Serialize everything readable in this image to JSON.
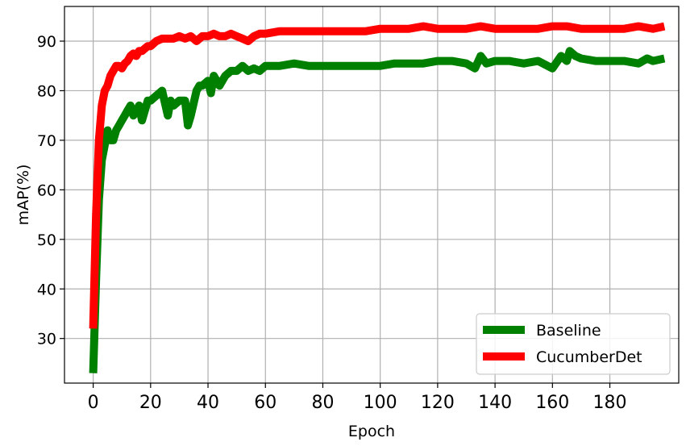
{
  "chart_data": {
    "type": "line",
    "xlabel": "Epoch",
    "ylabel": "mAP(%)",
    "xlim": [
      -10,
      204
    ],
    "ylim": [
      21,
      97
    ],
    "xticks": [
      0,
      20,
      40,
      60,
      80,
      100,
      120,
      140,
      160,
      180
    ],
    "yticks": [
      30,
      40,
      50,
      60,
      70,
      80,
      90
    ],
    "grid": true,
    "legend": "bottom-right",
    "series": [
      {
        "name": "Baseline",
        "color": "#008000",
        "x": [
          0,
          1,
          2,
          3,
          4,
          5,
          6,
          7,
          8,
          9,
          10,
          11,
          12,
          13,
          14,
          15,
          16,
          17,
          18,
          19,
          20,
          22,
          24,
          26,
          27,
          28,
          30,
          32,
          33,
          34,
          36,
          37,
          38,
          40,
          41,
          42,
          44,
          46,
          48,
          50,
          52,
          54,
          56,
          58,
          60,
          65,
          70,
          75,
          80,
          85,
          90,
          95,
          100,
          105,
          110,
          115,
          120,
          125,
          130,
          133,
          135,
          137,
          140,
          145,
          150,
          155,
          160,
          163,
          165,
          166,
          168,
          170,
          175,
          180,
          185,
          190,
          193,
          195,
          199
        ],
        "y": [
          23,
          42,
          58,
          66,
          69,
          72,
          70,
          70,
          72,
          73,
          74,
          75,
          76,
          77,
          75,
          76,
          77,
          74,
          76,
          78,
          78,
          79,
          80,
          75,
          78,
          77,
          78,
          78,
          73,
          75,
          80,
          81,
          81,
          82,
          79.5,
          83,
          81,
          83,
          84,
          84,
          85,
          84,
          84.5,
          84,
          85,
          85,
          85.5,
          85,
          85,
          85,
          85,
          85,
          85,
          85.5,
          85.5,
          85.5,
          86,
          86,
          85.5,
          84.5,
          87,
          85.5,
          86,
          86,
          85.5,
          86,
          84.5,
          87,
          86,
          88,
          87,
          86.5,
          86,
          86,
          86,
          85.5,
          86.5,
          86,
          86.5
        ]
      },
      {
        "name": "CucumberDet",
        "color": "#ff0000",
        "x": [
          0,
          1,
          2,
          3,
          4,
          5,
          6,
          7,
          8,
          9,
          10,
          11,
          12,
          13,
          14,
          15,
          16,
          17,
          18,
          19,
          20,
          22,
          24,
          26,
          28,
          30,
          32,
          34,
          36,
          38,
          40,
          42,
          44,
          46,
          48,
          50,
          52,
          54,
          56,
          58,
          60,
          65,
          70,
          75,
          80,
          85,
          90,
          95,
          100,
          105,
          110,
          115,
          120,
          125,
          130,
          135,
          140,
          145,
          150,
          155,
          160,
          165,
          170,
          175,
          180,
          185,
          190,
          195,
          199
        ],
        "y": [
          32,
          55,
          70,
          77,
          80,
          81,
          83,
          84,
          85,
          85,
          84.5,
          85.5,
          86,
          87,
          87.5,
          87,
          88,
          88,
          88.5,
          89,
          89,
          90,
          90.5,
          90.5,
          90.5,
          91,
          90.5,
          91,
          90,
          91,
          91,
          91.5,
          91,
          91,
          91.5,
          91,
          90.5,
          90,
          91,
          91.5,
          91.5,
          92,
          92,
          92,
          92,
          92,
          92,
          92,
          92.5,
          92.5,
          92.5,
          93,
          92.5,
          92.5,
          92.5,
          93,
          92.5,
          92.5,
          92.5,
          92.5,
          93,
          93,
          92.5,
          92.5,
          92.5,
          92.5,
          93,
          92.5,
          93
        ]
      }
    ]
  }
}
